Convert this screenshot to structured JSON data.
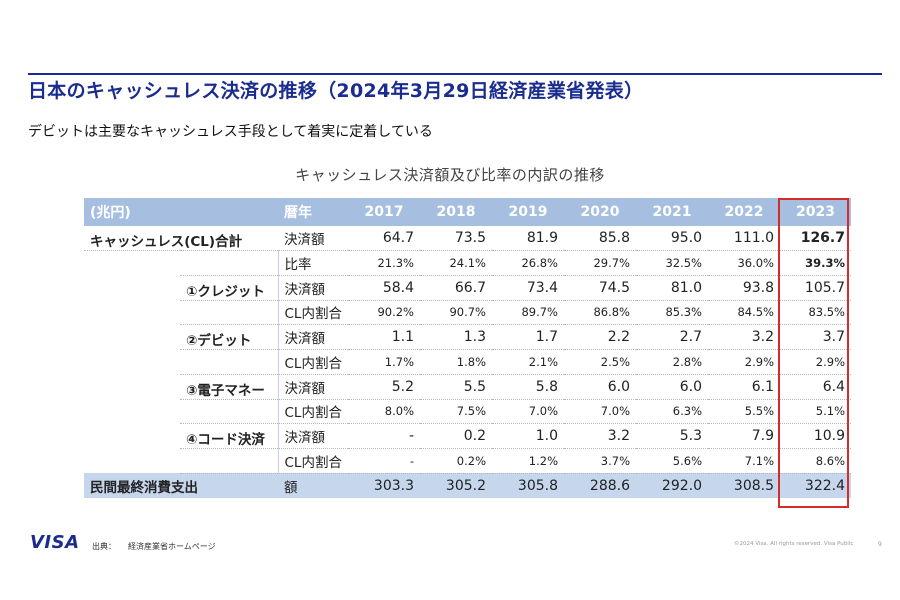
{
  "title": "日本のキャッシュレス決済の推移（2024年3月29日経済産業省発表）",
  "subtitle": "デビットは主要なキャッシュレス手段として着実に定着している",
  "table_title": "キャッシュレス決済額及び比率の内訳の推移",
  "header": {
    "unit": "(兆円)",
    "kind": "暦年",
    "years": [
      "2017",
      "2018",
      "2019",
      "2020",
      "2021",
      "2022",
      "2023"
    ]
  },
  "groups": {
    "cashless_total": {
      "label": "キャッシュレス(CL)合計",
      "amount_label": "決済額",
      "amount": [
        "64.7",
        "73.5",
        "81.9",
        "85.8",
        "95.0",
        "111.0",
        "126.7"
      ],
      "ratio_label": "比率",
      "ratio": [
        "21.3%",
        "24.1%",
        "26.8%",
        "29.7%",
        "32.5%",
        "36.0%",
        "39.3%"
      ]
    },
    "credit": {
      "label": "①クレジット",
      "amount_label": "決済額",
      "amount": [
        "58.4",
        "66.7",
        "73.4",
        "74.5",
        "81.0",
        "93.8",
        "105.7"
      ],
      "share_label": "CL内割合",
      "share": [
        "90.2%",
        "90.7%",
        "89.7%",
        "86.8%",
        "85.3%",
        "84.5%",
        "83.5%"
      ]
    },
    "debit": {
      "label": "②デビット",
      "amount_label": "決済額",
      "amount": [
        "1.1",
        "1.3",
        "1.7",
        "2.2",
        "2.7",
        "3.2",
        "3.7"
      ],
      "share_label": "CL内割合",
      "share": [
        "1.7%",
        "1.8%",
        "2.1%",
        "2.5%",
        "2.8%",
        "2.9%",
        "2.9%"
      ]
    },
    "emoney": {
      "label": "③電子マネー",
      "amount_label": "決済額",
      "amount": [
        "5.2",
        "5.5",
        "5.8",
        "6.0",
        "6.0",
        "6.1",
        "6.4"
      ],
      "share_label": "CL内割合",
      "share": [
        "8.0%",
        "7.5%",
        "7.0%",
        "7.0%",
        "6.3%",
        "5.5%",
        "5.1%"
      ]
    },
    "code": {
      "label": "④コード決済",
      "amount_label": "決済額",
      "amount": [
        "-",
        "0.2",
        "1.0",
        "3.2",
        "5.3",
        "7.9",
        "10.9"
      ],
      "share_label": "CL内割合",
      "share": [
        "-",
        "0.2%",
        "1.2%",
        "3.7%",
        "5.6%",
        "7.1%",
        "8.6%"
      ]
    },
    "consumption": {
      "label": "民間最終消費支出",
      "amount_label": "額",
      "amount": [
        "303.3",
        "305.2",
        "305.8",
        "288.6",
        "292.0",
        "308.5",
        "322.4"
      ]
    }
  },
  "footer": {
    "logo": "VISA",
    "source_label": "出典：",
    "source": "経済産業省ホームページ",
    "copyright": "©2024 Visa. All rights reserved. Visa Public",
    "page": "9"
  },
  "colors": {
    "title_blue": "#1a2d8f",
    "header_bg": "#a6bfe0",
    "total_bg": "#c6d6ec",
    "highlight_red": "#d62b2b"
  }
}
